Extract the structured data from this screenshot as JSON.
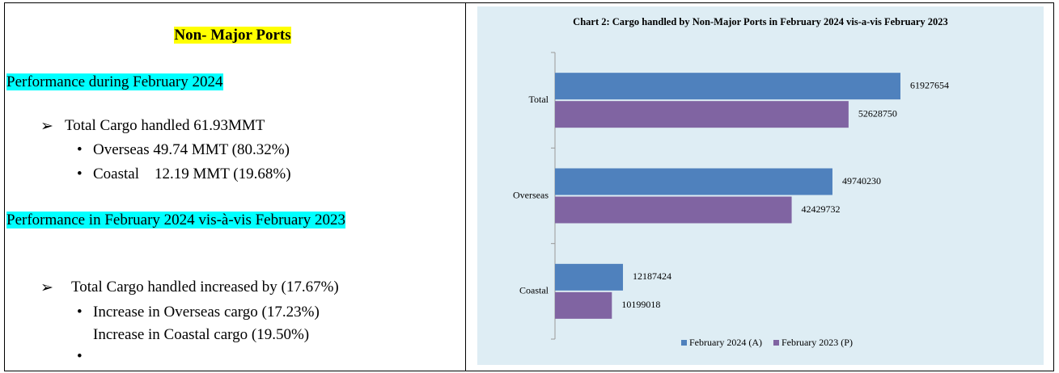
{
  "left": {
    "heading": "Non- Major Ports",
    "section1": {
      "title": "Performance during February 2024",
      "bullet": "Total Cargo handled 61.93MMT",
      "subbullets": [
        "Overseas 49.74 MMT (80.32%)",
        "Coastal    12.19 MMT (19.68%)"
      ]
    },
    "section2": {
      "title": "Performance in February 2024 vis-à-vis February 2023",
      "bullet": "Total Cargo handled increased by (17.67%)",
      "subbullets": [
        "Increase in Overseas cargo (17.23%)",
        "Increase in Coastal cargo (19.50%)"
      ]
    }
  },
  "chart_data": {
    "type": "bar",
    "orientation": "horizontal",
    "title": "Chart 2: Cargo handled by Non-Major Ports in February 2024 vis-a-vis February 2023",
    "categories": [
      "Total",
      "Overseas",
      "Coastal"
    ],
    "series": [
      {
        "name": "February 2024 (A)",
        "color": "#4f81bd",
        "values": [
          61927654,
          49740230,
          12187424
        ]
      },
      {
        "name": "February 2023 (P)",
        "color": "#8064a2",
        "values": [
          52628750,
          42429732,
          10199018
        ]
      }
    ],
    "legend": "bottom"
  }
}
